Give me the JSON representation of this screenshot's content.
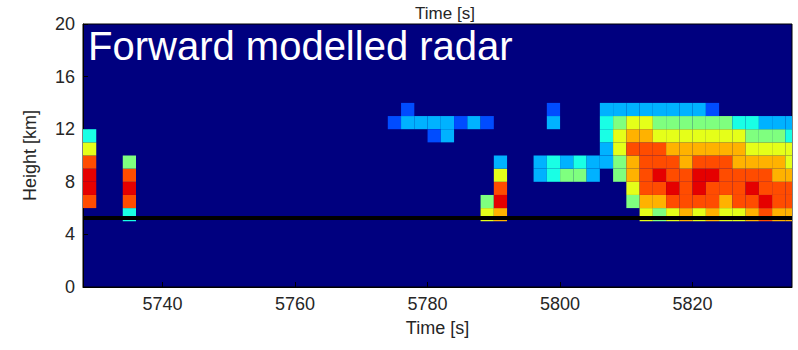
{
  "chart_data": {
    "type": "heatmap",
    "title": "Time [s]",
    "annotation": "Forward modelled radar",
    "x_label": "Time [s]",
    "y_label": "Height [km]",
    "xlim": [
      5728,
      5835
    ],
    "xticks": [
      5740,
      5760,
      5780,
      5800,
      5820
    ],
    "ylim": [
      0,
      20
    ],
    "yticks": [
      0,
      4,
      8,
      12,
      16,
      20
    ],
    "grid": false,
    "hline": 5.3,
    "zlim": [
      0,
      10
    ],
    "cell_size": [
      2,
      1
    ],
    "cells": [
      [
        5728,
        6,
        8
      ],
      [
        5728,
        7,
        9
      ],
      [
        5728,
        8,
        9
      ],
      [
        5728,
        9,
        8
      ],
      [
        5728,
        10,
        6
      ],
      [
        5728,
        11,
        4
      ],
      [
        5734,
        5,
        4
      ],
      [
        5734,
        6,
        8
      ],
      [
        5734,
        7,
        9
      ],
      [
        5734,
        8,
        8
      ],
      [
        5734,
        9,
        5
      ],
      [
        5788,
        5,
        6
      ],
      [
        5788,
        6,
        5
      ],
      [
        5790,
        5,
        7
      ],
      [
        5790,
        6,
        9
      ],
      [
        5790,
        7,
        8
      ],
      [
        5790,
        8,
        6
      ],
      [
        5790,
        9,
        3
      ],
      [
        5774,
        12,
        2
      ],
      [
        5776,
        12,
        3
      ],
      [
        5776,
        13,
        2
      ],
      [
        5778,
        12,
        3
      ],
      [
        5780,
        12,
        3
      ],
      [
        5780,
        11,
        2
      ],
      [
        5782,
        11,
        3
      ],
      [
        5782,
        12,
        3
      ],
      [
        5784,
        12,
        2
      ],
      [
        5786,
        12,
        3
      ],
      [
        5788,
        12,
        2
      ],
      [
        5798,
        12,
        3
      ],
      [
        5798,
        13,
        2
      ],
      [
        5796,
        8,
        3
      ],
      [
        5796,
        9,
        3
      ],
      [
        5798,
        8,
        4
      ],
      [
        5798,
        9,
        4
      ],
      [
        5800,
        8,
        5
      ],
      [
        5800,
        9,
        3
      ],
      [
        5802,
        8,
        5
      ],
      [
        5802,
        9,
        4
      ],
      [
        5804,
        8,
        3
      ],
      [
        5804,
        9,
        3
      ],
      [
        5806,
        9,
        3
      ],
      [
        5806,
        10,
        3
      ],
      [
        5806,
        11,
        4
      ],
      [
        5806,
        12,
        4
      ],
      [
        5806,
        13,
        3
      ],
      [
        5808,
        8,
        5
      ],
      [
        5808,
        9,
        5
      ],
      [
        5808,
        10,
        6
      ],
      [
        5808,
        11,
        6
      ],
      [
        5808,
        12,
        5
      ],
      [
        5808,
        13,
        3
      ],
      [
        5810,
        6,
        5
      ],
      [
        5810,
        7,
        6
      ],
      [
        5810,
        8,
        7
      ],
      [
        5810,
        9,
        7
      ],
      [
        5810,
        10,
        8
      ],
      [
        5810,
        11,
        7
      ],
      [
        5810,
        12,
        6
      ],
      [
        5810,
        13,
        3
      ],
      [
        5812,
        5,
        6
      ],
      [
        5812,
        6,
        7
      ],
      [
        5812,
        7,
        8
      ],
      [
        5812,
        8,
        8
      ],
      [
        5812,
        9,
        8
      ],
      [
        5812,
        10,
        8
      ],
      [
        5812,
        11,
        7
      ],
      [
        5812,
        12,
        6
      ],
      [
        5812,
        13,
        3
      ],
      [
        5814,
        5,
        5
      ],
      [
        5814,
        6,
        7
      ],
      [
        5814,
        7,
        8
      ],
      [
        5814,
        8,
        9
      ],
      [
        5814,
        9,
        8
      ],
      [
        5814,
        10,
        8
      ],
      [
        5814,
        11,
        6
      ],
      [
        5814,
        12,
        5
      ],
      [
        5814,
        13,
        3
      ],
      [
        5816,
        5,
        6
      ],
      [
        5816,
        6,
        8
      ],
      [
        5816,
        7,
        9
      ],
      [
        5816,
        8,
        8
      ],
      [
        5816,
        9,
        8
      ],
      [
        5816,
        10,
        7
      ],
      [
        5816,
        11,
        6
      ],
      [
        5816,
        12,
        5
      ],
      [
        5816,
        13,
        3
      ],
      [
        5818,
        5,
        7
      ],
      [
        5818,
        6,
        8
      ],
      [
        5818,
        7,
        8
      ],
      [
        5818,
        8,
        8
      ],
      [
        5818,
        9,
        7
      ],
      [
        5818,
        10,
        7
      ],
      [
        5818,
        11,
        6
      ],
      [
        5818,
        12,
        5
      ],
      [
        5818,
        13,
        3
      ],
      [
        5820,
        5,
        6
      ],
      [
        5820,
        6,
        8
      ],
      [
        5820,
        7,
        9
      ],
      [
        5820,
        8,
        9
      ],
      [
        5820,
        9,
        8
      ],
      [
        5820,
        10,
        7
      ],
      [
        5820,
        11,
        6
      ],
      [
        5820,
        12,
        5
      ],
      [
        5820,
        13,
        3
      ],
      [
        5822,
        5,
        7
      ],
      [
        5822,
        6,
        8
      ],
      [
        5822,
        7,
        8
      ],
      [
        5822,
        8,
        9
      ],
      [
        5822,
        9,
        8
      ],
      [
        5822,
        10,
        7
      ],
      [
        5822,
        11,
        6
      ],
      [
        5822,
        12,
        5
      ],
      [
        5822,
        13,
        2
      ],
      [
        5824,
        5,
        6
      ],
      [
        5824,
        6,
        7
      ],
      [
        5824,
        7,
        8
      ],
      [
        5824,
        8,
        8
      ],
      [
        5824,
        9,
        8
      ],
      [
        5824,
        10,
        7
      ],
      [
        5824,
        11,
        6
      ],
      [
        5824,
        12,
        5
      ],
      [
        5826,
        5,
        6
      ],
      [
        5826,
        6,
        8
      ],
      [
        5826,
        7,
        8
      ],
      [
        5826,
        8,
        8
      ],
      [
        5826,
        9,
        7
      ],
      [
        5826,
        10,
        7
      ],
      [
        5826,
        11,
        6
      ],
      [
        5826,
        12,
        4
      ],
      [
        5828,
        5,
        7
      ],
      [
        5828,
        6,
        8
      ],
      [
        5828,
        7,
        9
      ],
      [
        5828,
        8,
        8
      ],
      [
        5828,
        9,
        7
      ],
      [
        5828,
        10,
        6
      ],
      [
        5828,
        11,
        5
      ],
      [
        5828,
        12,
        4
      ],
      [
        5830,
        5,
        8
      ],
      [
        5830,
        6,
        9
      ],
      [
        5830,
        7,
        8
      ],
      [
        5830,
        8,
        8
      ],
      [
        5830,
        9,
        7
      ],
      [
        5830,
        10,
        6
      ],
      [
        5830,
        11,
        5
      ],
      [
        5830,
        12,
        3
      ],
      [
        5832,
        5,
        7
      ],
      [
        5832,
        6,
        8
      ],
      [
        5832,
        7,
        8
      ],
      [
        5832,
        8,
        7
      ],
      [
        5832,
        9,
        7
      ],
      [
        5832,
        10,
        6
      ],
      [
        5832,
        11,
        5
      ],
      [
        5832,
        12,
        3
      ],
      [
        5834,
        5,
        7
      ],
      [
        5834,
        6,
        8
      ],
      [
        5834,
        7,
        8
      ],
      [
        5834,
        8,
        7
      ],
      [
        5834,
        9,
        6
      ],
      [
        5834,
        10,
        6
      ],
      [
        5834,
        11,
        4
      ],
      [
        5834,
        12,
        3
      ]
    ]
  }
}
